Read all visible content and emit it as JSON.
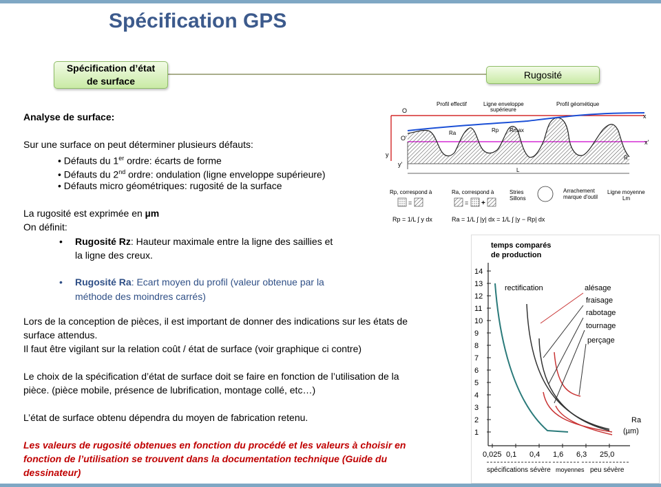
{
  "title": "Spécification GPS",
  "box_left_line1": "Spécification d’état",
  "box_left_line2": "de surface",
  "box_right": "Rugosité",
  "heading": "Analyse de surface:",
  "intro": "Sur une surface on peut déterminer plusieurs défauts:",
  "defects": [
    {
      "prefix": "• Défauts du 1",
      "sup": "er",
      "suffix": " ordre: écarts de forme"
    },
    {
      "prefix": "• Défauts du 2",
      "sup": "nd",
      "suffix": " ordre: ondulation (ligne enveloppe supérieure)"
    },
    {
      "prefix": "• Défauts micro géométriques: rugosité de la surface",
      "sup": "",
      "suffix": ""
    }
  ],
  "unit_line_prefix": "La rugosité est exprimée en ",
  "unit": "µm",
  "on_definit": "On définit:",
  "rz_label": "Rugosité Rz",
  "rz_text_1": ": Hauteur maximale entre la ligne des saillies et",
  "rz_text_2": "la ligne des creux.",
  "ra_label": "Rugosité Ra",
  "ra_text_1": ": Ecart moyen du profil (valeur obtenue par la",
  "ra_text_2": "méthode des moindres carrés)",
  "p1_l1": "Lors de la conception de pièces, il est important de donner des indications sur les états de",
  "p1_l2": "surface attendus.",
  "p1_l3": "Il faut être vigilant sur la relation coût / état de surface (voir graphique ci contre)",
  "p2_l1": "Le choix de la spécification d’état de surface doit se faire en fonction de l’utilisation de la",
  "p2_l2": "pièce. (pièce mobile, présence de lubrification, montage collé, etc…)",
  "p3": "L’état de surface obtenu dépendra du moyen de fabrication retenu.",
  "red_l1": "Les valeurs de rugosité obtenues en fonction du procédé et les valeurs à choisir en",
  "red_l2": "fonction de l’utilisation se trouvent dans la documentation technique (Guide du",
  "red_l3": "dessinateur)",
  "profile_fig": {
    "profil_effectif": "Profil effectif",
    "ligne_env_1": "Ligne enveloppe",
    "ligne_env_2": "supérieure",
    "profil_geo": "Profil géométique",
    "O": "O",
    "x": "x",
    "Oprime": "O'",
    "xprime": "x'",
    "y": "y",
    "yprime": "y'",
    "Ra": "Ra",
    "Rp": "Rp",
    "Rmax": "Rmax",
    "L": "L",
    "R": "R",
    "rp_corr": "Rp, correspond à",
    "ra_corr": "Ra, correspond à",
    "stries_1": "Stries",
    "stries_2": "Sillons",
    "arr_1": "Arrachement",
    "arr_2": "marque d'outil",
    "lm_1": "Ligne moyenne",
    "lm_2": "Lm",
    "rp_eq": "Rp = 1/L ∫ y dx",
    "ra_eq1": "Ra = 1/L ∫ |y| dx = 1/L ∫ |y − Rp| dx"
  },
  "cost_chart": {
    "ylabel_1": "temps comparés",
    "ylabel_2": "de production",
    "y_ticks": [
      "14",
      "13",
      "12",
      "11",
      "10",
      "9",
      "8",
      "7",
      "6",
      "5",
      "4",
      "3",
      "2",
      "1"
    ],
    "x_ticks": [
      "0,025",
      "0,1",
      "0,4",
      "1,6",
      "6,3",
      "25,0"
    ],
    "xlabel_1": "Ra",
    "xlabel_2": "(µm)",
    "curves": [
      "rectification",
      "alésage",
      "fraisage",
      "rabotage",
      "tournage",
      "perçage"
    ],
    "zones": [
      "spécifications sévère",
      "moyennes",
      "peu sévère"
    ]
  }
}
